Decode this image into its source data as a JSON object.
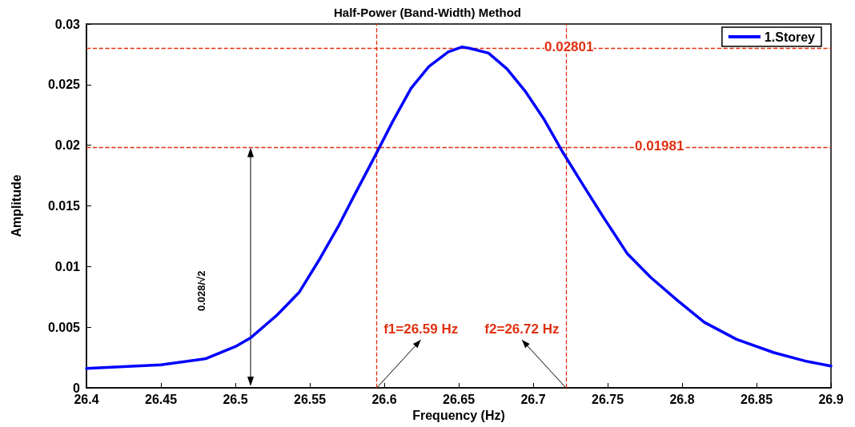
{
  "chart_data": {
    "type": "line",
    "title": "Half-Power (Band-Width) Method",
    "xlabel": "Frequency (Hz)",
    "ylabel": "Amplitude",
    "xlim": [
      26.4,
      26.9
    ],
    "xticks": [
      26.4,
      26.45,
      26.5,
      26.55,
      26.6,
      26.65,
      26.7,
      26.75,
      26.8,
      26.85,
      26.9
    ],
    "ylim": [
      0,
      0.03
    ],
    "yticks": [
      0,
      0.005,
      0.01,
      0.015,
      0.02,
      0.025,
      0.03
    ],
    "grid": false,
    "legend": "top right",
    "marker": "none",
    "line_style": "solid",
    "series": [
      {
        "name": "1.Storey",
        "color": "#0000ff",
        "x": [
          26.4,
          26.45,
          26.48,
          26.5,
          26.51,
          26.528,
          26.543,
          26.557,
          26.5695,
          26.58,
          26.5937,
          26.6054,
          26.618,
          26.63,
          26.643,
          26.652,
          26.657,
          26.67,
          26.6824,
          26.695,
          26.7075,
          26.72,
          26.7326,
          26.747,
          26.763,
          26.779,
          26.797,
          26.815,
          26.8366,
          26.8617,
          26.883,
          26.9
        ],
        "values": [
          0.0016,
          0.0019,
          0.0024,
          0.0034,
          0.0041,
          0.006,
          0.0079,
          0.0107,
          0.0134,
          0.0159,
          0.0191,
          0.0219,
          0.0247,
          0.0265,
          0.0277,
          0.0281,
          0.02801,
          0.0276,
          0.0263,
          0.0244,
          0.0221,
          0.0194,
          0.0169,
          0.0141,
          0.0111,
          0.0091,
          0.0072,
          0.0054,
          0.004,
          0.0029,
          0.0022,
          0.0018
        ]
      }
    ],
    "ref_lines": [
      {
        "axis": "y",
        "value": 0.02801,
        "label": "0.02801",
        "color": "#e03010",
        "line_style": "dashed"
      },
      {
        "axis": "y",
        "value": 0.01981,
        "label": "0.01981",
        "color": "#e03010",
        "line_style": "dashed"
      },
      {
        "axis": "x",
        "value": 26.595,
        "label": null,
        "color": "#e03010",
        "line_style": "dashed"
      },
      {
        "axis": "x",
        "value": 26.722,
        "label": null,
        "color": "#e03010",
        "line_style": "dashed"
      }
    ],
    "annotations": [
      "f1=26.59 Hz",
      "f2=26.72 Hz",
      "0.028/√2"
    ]
  }
}
